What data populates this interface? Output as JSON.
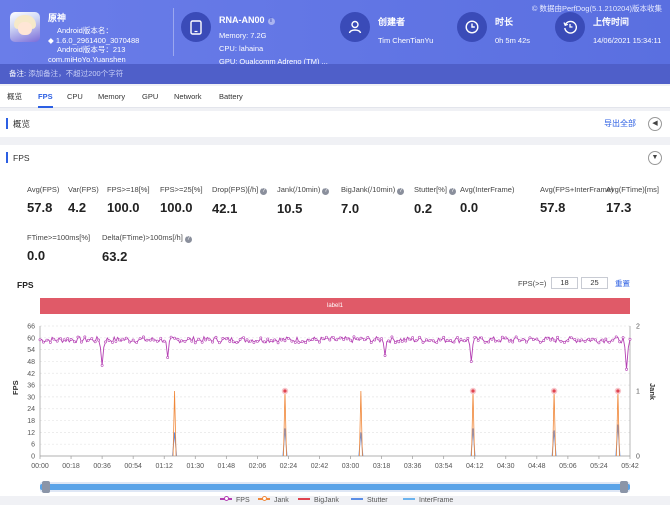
{
  "watermark": "数据由PerfDog(5.1.210204)版本收集",
  "app": {
    "name": "原神",
    "version_line": "Android版本名：",
    "version_value": "1.6.0_2961400_3070488",
    "code_line": "Android版本号：213",
    "package": "com.miHoYo.Yuanshen"
  },
  "device": {
    "name": "RNA-AN00",
    "memory": "Memory: 7.2G",
    "cpu": "CPU: lahaina",
    "gpu": "GPU: Qualcomm Adreno (TM) ..."
  },
  "creator": {
    "label": "创建者",
    "value": "Tim ChenTianYu"
  },
  "duration": {
    "label": "时长",
    "value": "0h 5m 42s"
  },
  "upload": {
    "label": "上传时间",
    "value": "14/06/2021 15:34:11"
  },
  "remark": {
    "label": "备注:",
    "placeholder": "添加备注，不超过200个字符"
  },
  "tabs": [
    "概览",
    "FPS",
    "CPU",
    "Memory",
    "GPU",
    "Network",
    "Battery"
  ],
  "active_tab": "FPS",
  "overview": {
    "title": "概览",
    "export": "导出全部",
    "toggle": "◀"
  },
  "fps_section": {
    "title": "FPS",
    "toggle": "▼",
    "metrics": [
      {
        "label": "Avg(FPS)",
        "value": "57.8",
        "help": false
      },
      {
        "label": "Var(FPS)",
        "value": "4.2",
        "help": false
      },
      {
        "label": "FPS>=18[%]",
        "value": "100.0",
        "help": false
      },
      {
        "label": "FPS>=25[%]",
        "value": "100.0",
        "help": false
      },
      {
        "label": "Drop(FPS)[/h]",
        "value": "42.1",
        "help": true
      },
      {
        "label": "Jank(/10min)",
        "value": "10.5",
        "help": true
      },
      {
        "label": "BigJank(/10min)",
        "value": "7.0",
        "help": true
      },
      {
        "label": "Stutter[%]",
        "value": "0.2",
        "help": true
      },
      {
        "label": "Avg(InterFrame)",
        "value": "0.0",
        "help": false
      },
      {
        "label": "Avg(FPS+InterFrame)",
        "value": "57.8",
        "help": false
      },
      {
        "label": "Avg(FTime)[ms]",
        "value": "17.3",
        "help": false
      },
      {
        "label": "FTime>=100ms[%]",
        "value": "0.0",
        "help": false
      },
      {
        "label": "Delta(FTime)>100ms[/h]",
        "value": "63.2",
        "help": true
      }
    ]
  },
  "chart_header": {
    "title": "FPS",
    "filter_label": "FPS(>=)",
    "filter_min": "18",
    "filter_max": "25",
    "reset": "重置",
    "label_bar": "label1"
  },
  "colors": {
    "fps": "#b43fb3",
    "jank": "#f0883a",
    "bigjank": "#e0434f",
    "stutter": "#5b8ee6",
    "interframe": "#6cb3ee",
    "header": "#6a7de9",
    "accent": "#2c5fe3"
  },
  "chart_data": {
    "type": "line",
    "ylabel_left": "FPS",
    "ylabel_right": "Jank",
    "y_left_ticks": [
      0,
      6,
      12,
      18,
      24,
      30,
      36,
      42,
      48,
      54,
      60,
      66
    ],
    "y_right_ticks": [
      0,
      1,
      2
    ],
    "ylim_left": [
      0,
      66
    ],
    "ylim_right": [
      0,
      2
    ],
    "x_ticks": [
      "00:00",
      "00:18",
      "00:36",
      "00:54",
      "01:12",
      "01:30",
      "01:48",
      "02:06",
      "02:24",
      "02:42",
      "03:00",
      "03:18",
      "03:36",
      "03:54",
      "04:12",
      "04:30",
      "04:48",
      "05:06",
      "05:24",
      "05:42"
    ],
    "xlim_seconds": [
      0,
      342
    ],
    "series": [
      {
        "name": "FPS",
        "type": "line",
        "axis": "left",
        "typical_range": [
          55,
          62
        ],
        "dips": [
          {
            "t": 36,
            "v": 46
          },
          {
            "t": 74,
            "v": 50
          },
          {
            "t": 200,
            "v": 51
          },
          {
            "t": 250,
            "v": 48
          },
          {
            "t": 340,
            "v": 44
          }
        ]
      },
      {
        "name": "Jank",
        "type": "line",
        "axis": "right",
        "events": [
          {
            "t": 78,
            "v": 1
          },
          {
            "t": 142,
            "v": 1
          },
          {
            "t": 186,
            "v": 1
          },
          {
            "t": 251,
            "v": 1
          },
          {
            "t": 298,
            "v": 1
          },
          {
            "t": 335,
            "v": 1
          }
        ]
      },
      {
        "name": "BigJank",
        "type": "line",
        "axis": "right",
        "events": [
          {
            "t": 142,
            "v": 1
          },
          {
            "t": 251,
            "v": 1
          },
          {
            "t": 298,
            "v": 1
          },
          {
            "t": 335,
            "v": 1
          }
        ]
      },
      {
        "name": "Stutter",
        "type": "line",
        "axis": "left",
        "events": [
          {
            "t": 78,
            "v": 12
          },
          {
            "t": 142,
            "v": 14
          },
          {
            "t": 186,
            "v": 12
          },
          {
            "t": 251,
            "v": 14
          },
          {
            "t": 298,
            "v": 13
          },
          {
            "t": 335,
            "v": 16
          }
        ]
      },
      {
        "name": "InterFrame",
        "type": "line",
        "axis": "left",
        "values": "0"
      }
    ],
    "legend": [
      "FPS",
      "Jank",
      "BigJank",
      "Stutter",
      "InterFrame"
    ],
    "legend_position": "bottom",
    "grid": true
  }
}
